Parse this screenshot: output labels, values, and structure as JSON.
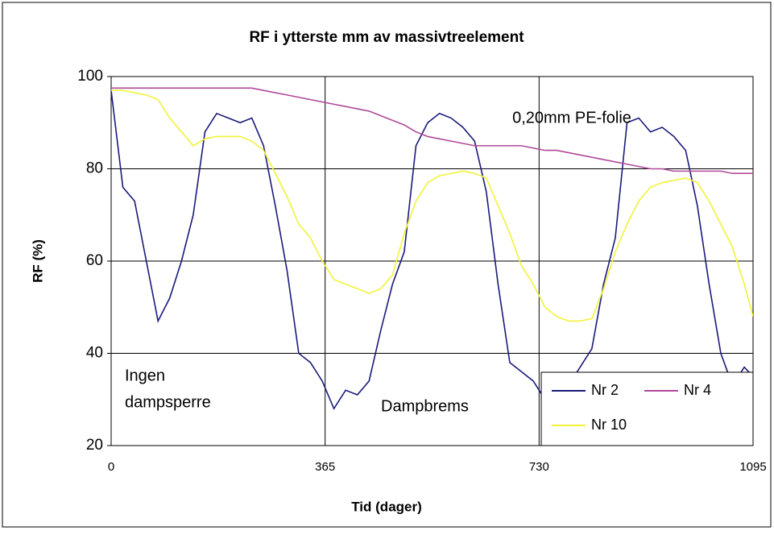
{
  "chart_data": {
    "type": "line",
    "title": "RF i ytterste mm av massivtreelement",
    "x_label": "Tid (dager)",
    "y_label": "RF (%)",
    "x": [
      0,
      20,
      40,
      60,
      80,
      100,
      120,
      140,
      160,
      180,
      200,
      220,
      240,
      260,
      280,
      300,
      320,
      340,
      360,
      380,
      400,
      420,
      440,
      460,
      480,
      500,
      520,
      540,
      560,
      580,
      600,
      620,
      640,
      660,
      680,
      700,
      720,
      740,
      760,
      780,
      800,
      820,
      840,
      860,
      880,
      900,
      920,
      940,
      960,
      980,
      1000,
      1020,
      1040,
      1060,
      1080,
      1095
    ],
    "series": [
      {
        "name": "Nr 2",
        "color": "#1a1a7a",
        "values": [
          97,
          76,
          73,
          60,
          47,
          52,
          60,
          70,
          88,
          92,
          91,
          90,
          91,
          85,
          72,
          58,
          40,
          38,
          34,
          28,
          32,
          31,
          34,
          45,
          55,
          62,
          85,
          90,
          92,
          91,
          89,
          86,
          75,
          55,
          38,
          36,
          34,
          30,
          29,
          33,
          37,
          41,
          55,
          65,
          90,
          91,
          88,
          89,
          87,
          84,
          72,
          55,
          40,
          33,
          37,
          35
        ]
      },
      {
        "name": "Nr 4",
        "color": "#b04a9a",
        "values": [
          97.5,
          97.5,
          97.5,
          97.5,
          97.5,
          97.5,
          97.5,
          97.5,
          97.5,
          97.5,
          97.5,
          97.5,
          97.5,
          97,
          96.5,
          96,
          95.5,
          95,
          94.5,
          94,
          93.5,
          93,
          92.5,
          91.5,
          90.5,
          89.5,
          88,
          87,
          86.5,
          86,
          85.5,
          85,
          85,
          85,
          85,
          85,
          84.5,
          84,
          84,
          83.5,
          83,
          82.5,
          82,
          81.5,
          81,
          80.5,
          80,
          80,
          79.5,
          79.5,
          79.5,
          79.5,
          79.5,
          79,
          79,
          79
        ]
      },
      {
        "name": "Nr 10",
        "color": "#f2f23a",
        "values": [
          97,
          97,
          96.5,
          96,
          95,
          91,
          88,
          85,
          86.5,
          87,
          87,
          87,
          86,
          84,
          79,
          74,
          68,
          65,
          60,
          56,
          55,
          54,
          53,
          54,
          57,
          66,
          73,
          77,
          78.5,
          79,
          79.5,
          79,
          78,
          72,
          66,
          59,
          55,
          50,
          48,
          47,
          47,
          47.5,
          54,
          62,
          68,
          73,
          76,
          77,
          77.5,
          78,
          77,
          73,
          68,
          63,
          55,
          48
        ]
      }
    ],
    "xlim": [
      0,
      1095
    ],
    "xticks": [
      0,
      365,
      730,
      1095
    ],
    "ylim": [
      20,
      100
    ],
    "yticks": [
      20,
      40,
      60,
      80,
      100
    ],
    "grid": true,
    "legend": "lower right",
    "annotations": [
      {
        "lines": [
          "0,20mm PE-folie"
        ]
      },
      {
        "lines": [
          "Ingen",
          "dampsperre"
        ]
      },
      {
        "lines": [
          "Dampbrems"
        ]
      }
    ]
  }
}
